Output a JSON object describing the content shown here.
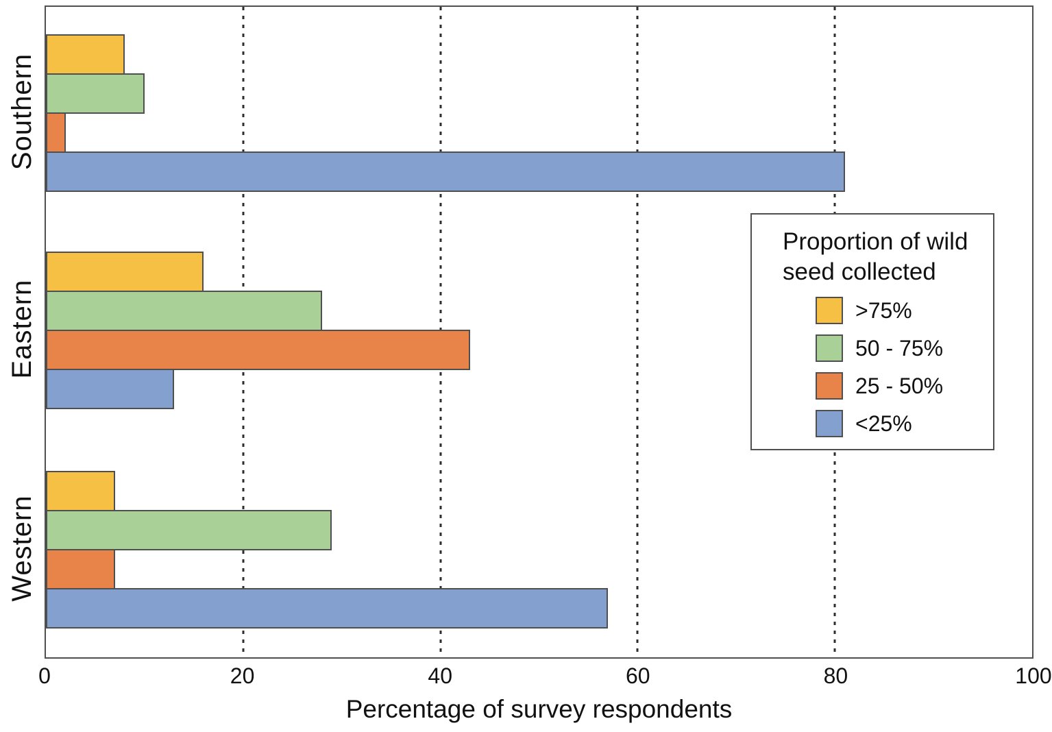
{
  "chart_data": {
    "type": "bar",
    "orientation": "horizontal",
    "title": "",
    "xlabel": "Percentage of survey respondents",
    "ylabel": "",
    "xlim": [
      0,
      100
    ],
    "xticks": [
      0,
      20,
      40,
      60,
      80,
      100
    ],
    "gridlines_at": [
      20,
      40,
      60,
      80
    ],
    "grid": "dotted-vertical",
    "categories": [
      "Southern",
      "Eastern",
      "Western"
    ],
    "series": [
      {
        "name": ">75%",
        "color": "#F5C044",
        "values": [
          8,
          16,
          7
        ]
      },
      {
        "name": "50 - 75%",
        "color": "#A9D096",
        "values": [
          10,
          28,
          29
        ]
      },
      {
        "name": "25 - 50%",
        "color": "#E8834A",
        "values": [
          2,
          43,
          7
        ]
      },
      {
        "name": "<25%",
        "color": "#84A0CE",
        "values": [
          81,
          13,
          57
        ]
      }
    ],
    "legend": {
      "title_lines": [
        "Proportion of wild",
        "seed collected"
      ],
      "position": "upper right"
    }
  },
  "colors": {
    "bar_border": "#4f4f4f",
    "axis_border": "#4f4f4f",
    "gridline": "#2e2e2e",
    "text": "#111111",
    "background": "#ffffff"
  }
}
